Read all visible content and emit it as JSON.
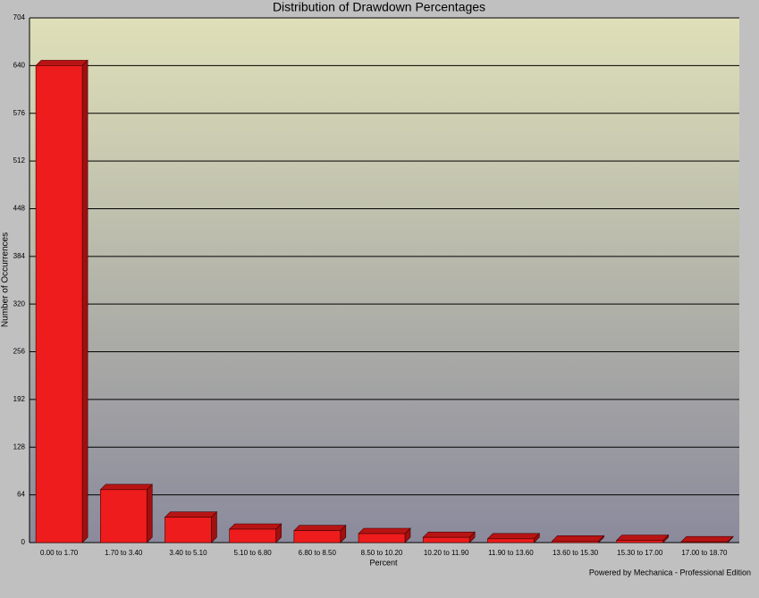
{
  "chart_data": {
    "type": "bar",
    "title": "Distribution of Drawdown Percentages",
    "x_label": "Percent",
    "y_label": "Number of Occurrences",
    "footer": "Powered by Mechanica - Professional Edition",
    "categories": [
      "0.00 to 1.70",
      "1.70 to 3.40",
      "3.40 to 5.10",
      "5.10 to 6.80",
      "6.80 to 8.50",
      "8.50 to 10.20",
      "10.20 to 11.90",
      "11.90 to 13.60",
      "13.60 to 15.30",
      "15.30 to 17.00",
      "17.00 to 18.70"
    ],
    "values": [
      640,
      71,
      34,
      18,
      16,
      12,
      7,
      5,
      2,
      3,
      1
    ],
    "color": "#ee1c1c",
    "ylim": [
      0,
      704
    ],
    "yticks": [
      0,
      64,
      128,
      192,
      256,
      320,
      384,
      448,
      512,
      576,
      640,
      704
    ],
    "grid": true
  }
}
